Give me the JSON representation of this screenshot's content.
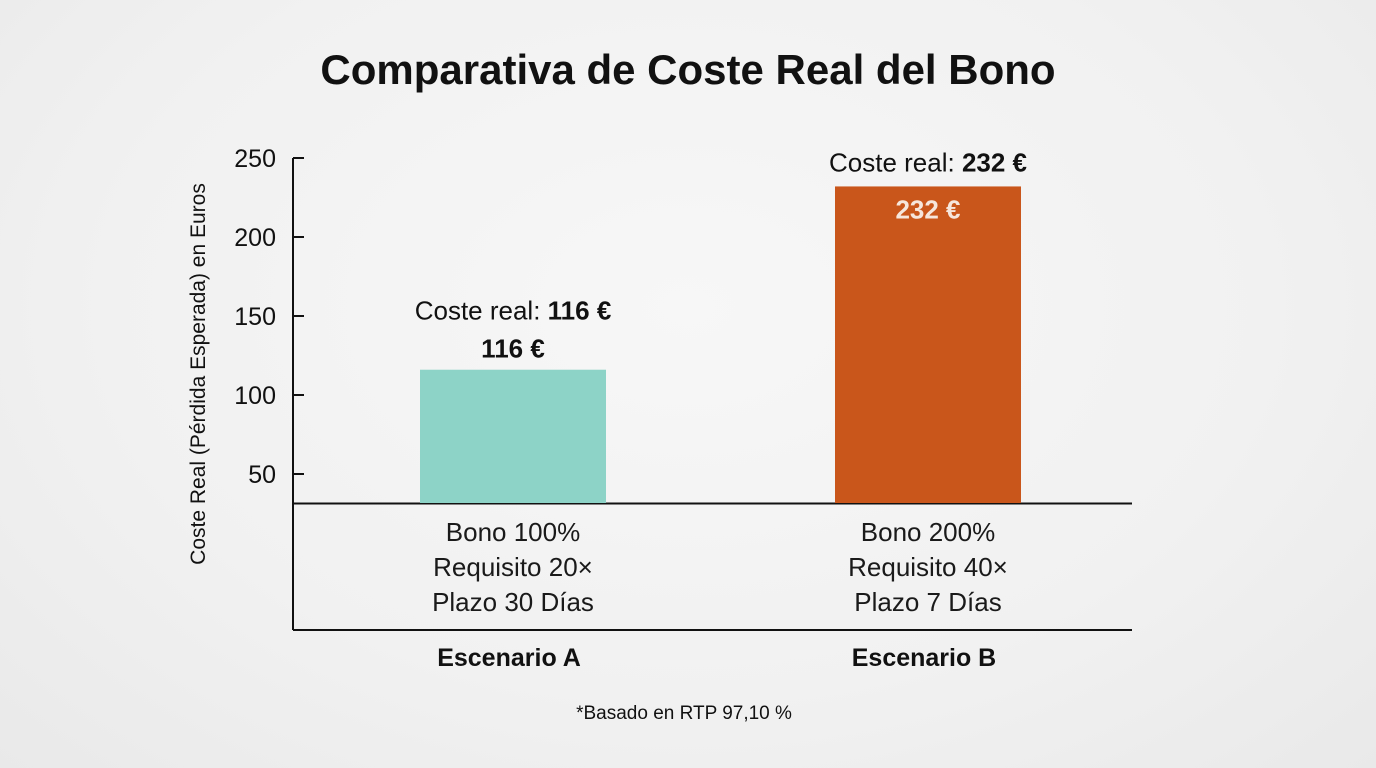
{
  "chart_data": {
    "type": "bar",
    "title": "Comparativa de Coste Real del Bono",
    "ylabel": "Coste Real (Pérdida Esperada) en Euros",
    "ylim": [
      30,
      250
    ],
    "yticks": [
      "50",
      "100",
      "150",
      "200",
      "250"
    ],
    "grid": false,
    "categories": [
      "Escenario A",
      "Escenario B"
    ],
    "values": [
      116,
      232
    ],
    "value_labels": [
      "116 €",
      "232 €"
    ],
    "cost_prefix": "Coste real:",
    "cost_values": [
      "116 €",
      "232 €"
    ],
    "descriptions": [
      [
        "Bono 100%",
        "Requisito 20×",
        "Plazo 30 Días"
      ],
      [
        "Bono 200%",
        "Requisito 40×",
        "Plazo 7 Días"
      ]
    ],
    "colors": [
      "#8dd3c7",
      "#c9561b"
    ],
    "value_label_colors": [
      "#111111",
      "#f6e6dc"
    ],
    "footnote": "*Basado en RTP 97,10 %"
  }
}
